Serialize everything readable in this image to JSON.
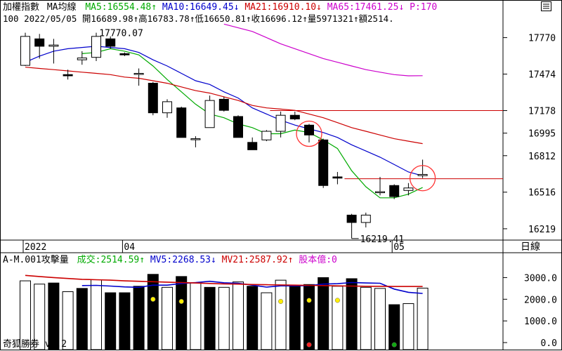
{
  "header": {
    "index_name": "加權指數",
    "indicator_name": "MA均線",
    "ma5": "MA5:16554.48↑",
    "ma10": "MA10:16649.45↓",
    "ma21": "MA21:16910.10↓",
    "ma65": "MA65:17461.25↓",
    "p": "P:170"
  },
  "quote_line": "100 2022/05/05 開16689.98↑高16783.78↑低16650.81↑收16696.12↑量5971321↑額2514.",
  "high_label": "17770.07",
  "low_label": "16219.41",
  "period_label": "日線",
  "volume_header": {
    "name": "A-M.001攻擊量",
    "turnover": "成交:2514.59↑",
    "mv5": "MV5:2268.53↓",
    "mv21": "MV21:2587.92↑",
    "capital": "股本億:0"
  },
  "footer": "奇狐勝券 v5.2",
  "menu_icon": "menu-icon",
  "colors": {
    "ma5": "#00aa00",
    "ma10": "#0000cc",
    "ma21": "#cc0000",
    "ma65": "#cc00cc",
    "background": "#ffffff",
    "grid": "#000000",
    "circle": "#ff3333",
    "dot_yellow": "#ffee00",
    "dot_red": "#ff2222",
    "dot_green": "#11aa11"
  },
  "chart_data": [
    {
      "type": "candlestick",
      "y_ticks": [
        17770,
        17474,
        17178,
        16995,
        16812,
        16516,
        16219
      ],
      "ylim": [
        16150,
        17950
      ],
      "x_ticks": [
        "2022",
        "04",
        "05"
      ],
      "candles": [
        {
          "o": 17545,
          "h": 17810,
          "l": 17540,
          "c": 17780
        },
        {
          "o": 17760,
          "h": 17800,
          "l": 17600,
          "c": 17700
        },
        {
          "o": 17700,
          "h": 17760,
          "l": 17560,
          "c": 17710
        },
        {
          "o": 17470,
          "h": 17510,
          "l": 17430,
          "c": 17460
        },
        {
          "o": 17590,
          "h": 17660,
          "l": 17550,
          "c": 17605
        },
        {
          "o": 17610,
          "h": 17810,
          "l": 17580,
          "c": 17780
        },
        {
          "o": 17760,
          "h": 17780,
          "l": 17680,
          "c": 17700
        },
        {
          "o": 17640,
          "h": 17650,
          "l": 17620,
          "c": 17630
        },
        {
          "o": 17480,
          "h": 17520,
          "l": 17380,
          "c": 17480
        },
        {
          "o": 17400,
          "h": 17410,
          "l": 17140,
          "c": 17160
        },
        {
          "o": 17160,
          "h": 17270,
          "l": 17120,
          "c": 17250
        },
        {
          "o": 17200,
          "h": 17210,
          "l": 16960,
          "c": 16960
        },
        {
          "o": 16950,
          "h": 16970,
          "l": 16880,
          "c": 16950
        },
        {
          "o": 17040,
          "h": 17300,
          "l": 17040,
          "c": 17260
        },
        {
          "o": 17270,
          "h": 17290,
          "l": 17170,
          "c": 17180
        },
        {
          "o": 17130,
          "h": 17140,
          "l": 16960,
          "c": 16960
        },
        {
          "o": 16920,
          "h": 16960,
          "l": 16860,
          "c": 16860
        },
        {
          "o": 16940,
          "h": 17020,
          "l": 16930,
          "c": 17010
        },
        {
          "o": 17010,
          "h": 17170,
          "l": 16960,
          "c": 17140
        },
        {
          "o": 17140,
          "h": 17170,
          "l": 17100,
          "c": 17110
        },
        {
          "o": 17060,
          "h": 17070,
          "l": 16920,
          "c": 16980
        },
        {
          "o": 16940,
          "h": 16950,
          "l": 16550,
          "c": 16570
        },
        {
          "o": 16640,
          "h": 16680,
          "l": 16580,
          "c": 16630
        },
        {
          "o": 16330,
          "h": 16340,
          "l": 16219,
          "c": 16270
        },
        {
          "o": 16270,
          "h": 16350,
          "l": 16230,
          "c": 16330
        },
        {
          "o": 16520,
          "h": 16640,
          "l": 16490,
          "c": 16520
        },
        {
          "o": 16570,
          "h": 16580,
          "l": 16460,
          "c": 16480
        },
        {
          "o": 16530,
          "h": 16590,
          "l": 16490,
          "c": 16550
        },
        {
          "o": 16650,
          "h": 16780,
          "l": 16630,
          "c": 16660
        }
      ],
      "series": [
        {
          "name": "MA5",
          "values": [
            null,
            null,
            null,
            null,
            17640,
            17650,
            17680,
            17660,
            17630,
            17540,
            17430,
            17330,
            17230,
            17150,
            17120,
            17070,
            17040,
            16990,
            16990,
            17020,
            17000,
            16940,
            16870,
            16690,
            16560,
            16470,
            16470,
            16500,
            16554
          ]
        },
        {
          "name": "MA10",
          "values": [
            17570,
            17620,
            17660,
            17680,
            17690,
            17700,
            17690,
            17680,
            17650,
            17590,
            17540,
            17480,
            17420,
            17390,
            17330,
            17280,
            17200,
            17150,
            17100,
            17060,
            17030,
            17000,
            16960,
            16900,
            16850,
            16800,
            16740,
            16680,
            16649
          ]
        },
        {
          "name": "MA21",
          "values": [
            17530,
            17520,
            17510,
            17500,
            17490,
            17480,
            17470,
            17450,
            17440,
            17420,
            17400,
            17370,
            17340,
            17320,
            17290,
            17260,
            17220,
            17200,
            17190,
            17180,
            17150,
            17120,
            17080,
            17040,
            17010,
            16980,
            16950,
            16930,
            16910
          ]
        },
        {
          "name": "MA65",
          "values": [
            null,
            null,
            null,
            null,
            null,
            null,
            null,
            null,
            null,
            null,
            null,
            null,
            null,
            null,
            17880,
            17850,
            17820,
            17770,
            17720,
            17680,
            17640,
            17600,
            17570,
            17540,
            17510,
            17490,
            17470,
            17460,
            17461.25
          ]
        }
      ],
      "high_point": {
        "index": 6,
        "value": 17770.07
      },
      "low_point": {
        "index": 23,
        "value": 16219.41
      },
      "hlines": [
        17178,
        16625
      ],
      "markers": [
        {
          "index": 20,
          "value": 16990
        },
        {
          "index": 28,
          "value": 16630
        }
      ]
    },
    {
      "type": "bar",
      "y_ticks": [
        "3000.0",
        "2000.0",
        "1000.0",
        "0.0"
      ],
      "ylim": [
        0,
        3500
      ],
      "values": [
        2850,
        2700,
        2750,
        2350,
        2500,
        2900,
        2300,
        2300,
        2600,
        3150,
        2550,
        3050,
        2750,
        2550,
        2550,
        2800,
        2600,
        2300,
        2880,
        2630,
        2680,
        3000,
        2600,
        2950,
        2550,
        2500,
        1750,
        1800,
        2514.59
      ],
      "filled": [
        false,
        false,
        true,
        false,
        true,
        false,
        true,
        true,
        true,
        true,
        false,
        true,
        false,
        true,
        false,
        false,
        true,
        false,
        false,
        true,
        true,
        true,
        false,
        true,
        false,
        false,
        true,
        false,
        false
      ],
      "series": [
        {
          "name": "MV5",
          "values": [
            null,
            null,
            null,
            null,
            2630,
            2640,
            2610,
            2570,
            2550,
            2650,
            2650,
            2730,
            2770,
            2830,
            2760,
            2740,
            2650,
            2560,
            2620,
            2620,
            2630,
            2700,
            2720,
            2770,
            2750,
            2740,
            2470,
            2320,
            2268.53
          ]
        },
        {
          "name": "MV21",
          "values": [
            3100,
            3050,
            3000,
            2960,
            2920,
            2900,
            2880,
            2850,
            2830,
            2810,
            2790,
            2770,
            2750,
            2730,
            2710,
            2700,
            2680,
            2670,
            2660,
            2650,
            2640,
            2630,
            2620,
            2610,
            2600,
            2600,
            2590,
            2588,
            2587.92
          ]
        }
      ],
      "dots": [
        {
          "index": 9,
          "value": 2000,
          "color": "yellow"
        },
        {
          "index": 11,
          "value": 1900,
          "color": "yellow"
        },
        {
          "index": 18,
          "value": 1900,
          "color": "yellow"
        },
        {
          "index": 20,
          "value": 1950,
          "color": "yellow"
        },
        {
          "index": 22,
          "value": 1950,
          "color": "yellow"
        },
        {
          "index": 20,
          "value": -100,
          "color": "red"
        },
        {
          "index": 26,
          "value": -100,
          "color": "green"
        }
      ]
    }
  ]
}
